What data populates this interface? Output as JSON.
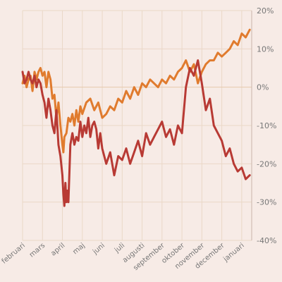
{
  "chart_data": {
    "type": "line",
    "title": "",
    "xlabel": "",
    "ylabel": "",
    "grid": true,
    "legend": "none",
    "ylim": [
      -40,
      20
    ],
    "xlim": [
      0,
      11.5
    ],
    "y_ticks": [
      20,
      10,
      0,
      -10,
      -20,
      -30,
      -40
    ],
    "y_tick_labels": [
      "20%",
      "10%",
      "0%",
      "-10%",
      "-20%",
      "-30%",
      "-40%"
    ],
    "x_ticks": [
      0,
      1,
      2,
      3,
      4,
      5,
      6,
      7,
      8,
      9,
      10,
      11
    ],
    "x_tick_labels": [
      "februari",
      "mars",
      "april",
      "maj",
      "juni",
      "juli",
      "augusti",
      "september",
      "oktober",
      "november",
      "december",
      "januari"
    ],
    "series": [
      {
        "color": "#e07b2e",
        "x": [
          0,
          0.1,
          0.2,
          0.3,
          0.4,
          0.5,
          0.6,
          0.7,
          0.8,
          0.9,
          1.0,
          1.1,
          1.2,
          1.3,
          1.4,
          1.5,
          1.6,
          1.7,
          1.8,
          1.9,
          2.0,
          2.05,
          2.1,
          2.2,
          2.3,
          2.4,
          2.5,
          2.6,
          2.7,
          2.8,
          2.9,
          3.0,
          3.2,
          3.4,
          3.6,
          3.8,
          4.0,
          4.2,
          4.4,
          4.6,
          4.8,
          5.0,
          5.2,
          5.4,
          5.6,
          5.8,
          6.0,
          6.2,
          6.4,
          6.6,
          6.8,
          7.0,
          7.2,
          7.4,
          7.6,
          7.8,
          8.0,
          8.2,
          8.4,
          8.6,
          8.8,
          9.0,
          9.2,
          9.4,
          9.6,
          9.8,
          10.0,
          10.2,
          10.4,
          10.6,
          10.8,
          11.0,
          11.2,
          11.4
        ],
        "values": [
          1,
          3,
          0,
          2,
          3,
          -1,
          4,
          2,
          4,
          5,
          3,
          4,
          0,
          4,
          2,
          -3,
          -2,
          -8,
          -4,
          -10,
          -15,
          -17,
          -13,
          -12,
          -8,
          -9,
          -7,
          -10,
          -6,
          -9,
          -5,
          -7,
          -4,
          -3,
          -6,
          -4,
          -8,
          -7,
          -5,
          -6,
          -3,
          -4,
          -1,
          -3,
          0,
          -2,
          1,
          0,
          2,
          1,
          0,
          2,
          1,
          3,
          2,
          4,
          5,
          7,
          4,
          6,
          1,
          4,
          6,
          7,
          7,
          9,
          8,
          9,
          10,
          12,
          11,
          14,
          13,
          15
        ]
      },
      {
        "color": "#b83a34",
        "x": [
          0,
          0.1,
          0.2,
          0.3,
          0.4,
          0.5,
          0.6,
          0.7,
          0.8,
          0.9,
          1.0,
          1.1,
          1.2,
          1.3,
          1.4,
          1.5,
          1.6,
          1.7,
          1.8,
          1.9,
          2.0,
          2.05,
          2.1,
          2.15,
          2.2,
          2.25,
          2.3,
          2.4,
          2.5,
          2.6,
          2.7,
          2.8,
          2.9,
          3.0,
          3.1,
          3.2,
          3.3,
          3.4,
          3.5,
          3.6,
          3.7,
          3.8,
          3.9,
          4.0,
          4.2,
          4.4,
          4.6,
          4.8,
          5.0,
          5.2,
          5.4,
          5.6,
          5.8,
          6.0,
          6.2,
          6.4,
          6.6,
          6.8,
          7.0,
          7.2,
          7.4,
          7.6,
          7.8,
          8.0,
          8.2,
          8.4,
          8.6,
          8.8,
          9.0,
          9.2,
          9.4,
          9.6,
          9.8,
          10.0,
          10.2,
          10.4,
          10.6,
          10.8,
          11.0,
          11.2,
          11.4
        ],
        "values": [
          4,
          1,
          2,
          4,
          2,
          1,
          3,
          0,
          2,
          1,
          -2,
          -4,
          -8,
          -3,
          -6,
          -10,
          -12,
          -6,
          -15,
          -18,
          -23,
          -28,
          -31,
          -25,
          -30,
          -27,
          -30,
          -15,
          -12,
          -15,
          -13,
          -14,
          -9,
          -13,
          -10,
          -12,
          -8,
          -13,
          -10,
          -9,
          -11,
          -16,
          -12,
          -16,
          -20,
          -17,
          -23,
          -18,
          -19,
          -16,
          -20,
          -17,
          -14,
          -18,
          -12,
          -15,
          -13,
          -11,
          -9,
          -13,
          -11,
          -15,
          -10,
          -12,
          0,
          5,
          3,
          7,
          1,
          -6,
          -3,
          -10,
          -12,
          -14,
          -18,
          -16,
          -20,
          -22,
          -21,
          -24,
          -23
        ]
      }
    ]
  }
}
